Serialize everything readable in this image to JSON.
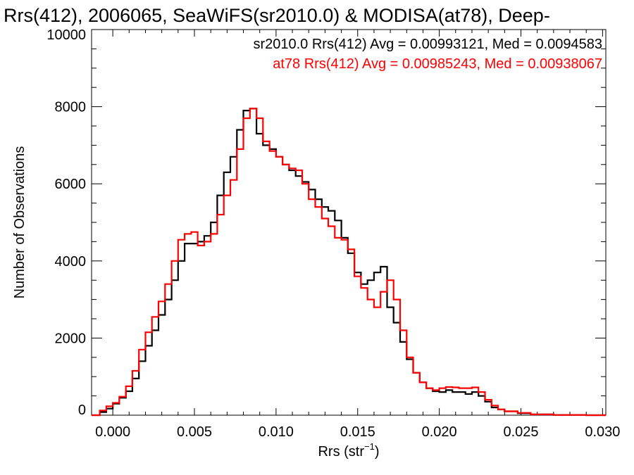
{
  "chart_data": {
    "type": "line",
    "title": "Rrs(412), 2006065, SeaWiFS(sr2010.0) & MODISA(at78), Deep-",
    "xlabel_main": "Rrs (str",
    "xlabel_sup": "−1",
    "xlabel_tail": ")",
    "ylabel": "Number of Observations",
    "xlim": [
      -0.0013,
      0.0302
    ],
    "ylim": [
      0,
      10000
    ],
    "x_ticks": [
      "0.000",
      "0.005",
      "0.010",
      "0.015",
      "0.020",
      "0.025",
      "0.030"
    ],
    "y_ticks": [
      "0",
      "2000",
      "4000",
      "6000",
      "8000",
      "10000"
    ],
    "grid": false,
    "annotations": [
      {
        "text": "sr2010.0 Rrs(412) Avg = 0.00993121, Med = 0.0094583",
        "color": "#000000"
      },
      {
        "text": "at78 Rrs(412) Avg = 0.00985243, Med = 0.00938067",
        "color": "#ff0000"
      }
    ],
    "series": [
      {
        "color": "#000000",
        "points": [
          [
            -0.0013,
            0
          ],
          [
            -0.0008,
            80
          ],
          [
            -0.0004,
            170
          ],
          [
            0.0,
            300
          ],
          [
            0.0004,
            450
          ],
          [
            0.0008,
            620
          ],
          [
            0.0012,
            950
          ],
          [
            0.0016,
            1400
          ],
          [
            0.002,
            1800
          ],
          [
            0.0024,
            2200
          ],
          [
            0.0028,
            2600
          ],
          [
            0.0032,
            3000
          ],
          [
            0.0036,
            3500
          ],
          [
            0.004,
            4000
          ],
          [
            0.0044,
            4450
          ],
          [
            0.0048,
            4450
          ],
          [
            0.0052,
            4500
          ],
          [
            0.0056,
            4650
          ],
          [
            0.006,
            5000
          ],
          [
            0.0064,
            5700
          ],
          [
            0.0068,
            6300
          ],
          [
            0.0072,
            6700
          ],
          [
            0.0076,
            7400
          ],
          [
            0.008,
            7900
          ],
          [
            0.0084,
            7950
          ],
          [
            0.0088,
            7300
          ],
          [
            0.0092,
            7000
          ],
          [
            0.0096,
            6900
          ],
          [
            0.01,
            6700
          ],
          [
            0.0104,
            6500
          ],
          [
            0.0108,
            6350
          ],
          [
            0.0112,
            6200
          ],
          [
            0.0116,
            6050
          ],
          [
            0.012,
            5850
          ],
          [
            0.0124,
            5600
          ],
          [
            0.0128,
            5400
          ],
          [
            0.0132,
            5300
          ],
          [
            0.0136,
            5050
          ],
          [
            0.014,
            4600
          ],
          [
            0.0144,
            4200
          ],
          [
            0.0148,
            3700
          ],
          [
            0.0152,
            3400
          ],
          [
            0.0156,
            3500
          ],
          [
            0.016,
            3700
          ],
          [
            0.0164,
            3850
          ],
          [
            0.0168,
            2800
          ],
          [
            0.0172,
            2400
          ],
          [
            0.0176,
            1900
          ],
          [
            0.018,
            1450
          ],
          [
            0.0184,
            1100
          ],
          [
            0.0188,
            850
          ],
          [
            0.0192,
            700
          ],
          [
            0.0196,
            620
          ],
          [
            0.02,
            600
          ],
          [
            0.0204,
            650
          ],
          [
            0.0208,
            600
          ],
          [
            0.0212,
            600
          ],
          [
            0.0216,
            550
          ],
          [
            0.022,
            600
          ],
          [
            0.0224,
            500
          ],
          [
            0.0228,
            350
          ],
          [
            0.0232,
            200
          ],
          [
            0.0236,
            150
          ],
          [
            0.024,
            100
          ],
          [
            0.0248,
            50
          ],
          [
            0.0256,
            20
          ],
          [
            0.027,
            5
          ],
          [
            0.029,
            0
          ],
          [
            0.0302,
            0
          ]
        ]
      },
      {
        "color": "#ff0000",
        "points": [
          [
            -0.0013,
            0
          ],
          [
            -0.0008,
            120
          ],
          [
            -0.0004,
            230
          ],
          [
            0.0,
            320
          ],
          [
            0.0004,
            480
          ],
          [
            0.0008,
            750
          ],
          [
            0.0012,
            1150
          ],
          [
            0.0016,
            1700
          ],
          [
            0.002,
            2150
          ],
          [
            0.0024,
            2550
          ],
          [
            0.0028,
            2950
          ],
          [
            0.0032,
            3400
          ],
          [
            0.0036,
            4000
          ],
          [
            0.004,
            4550
          ],
          [
            0.0044,
            4700
          ],
          [
            0.0048,
            4750
          ],
          [
            0.0052,
            4400
          ],
          [
            0.0056,
            4500
          ],
          [
            0.006,
            4700
          ],
          [
            0.0064,
            5200
          ],
          [
            0.0068,
            5700
          ],
          [
            0.0072,
            6100
          ],
          [
            0.0076,
            6900
          ],
          [
            0.008,
            7700
          ],
          [
            0.0084,
            7950
          ],
          [
            0.0088,
            7700
          ],
          [
            0.0092,
            7100
          ],
          [
            0.0096,
            6850
          ],
          [
            0.01,
            6700
          ],
          [
            0.0104,
            6500
          ],
          [
            0.0108,
            6400
          ],
          [
            0.0112,
            6350
          ],
          [
            0.0116,
            6000
          ],
          [
            0.012,
            5600
          ],
          [
            0.0124,
            5400
          ],
          [
            0.0128,
            5100
          ],
          [
            0.0132,
            4900
          ],
          [
            0.0136,
            4600
          ],
          [
            0.014,
            4550
          ],
          [
            0.0144,
            4300
          ],
          [
            0.0148,
            3600
          ],
          [
            0.0152,
            3300
          ],
          [
            0.0156,
            3000
          ],
          [
            0.016,
            2800
          ],
          [
            0.0164,
            3200
          ],
          [
            0.0168,
            3500
          ],
          [
            0.0172,
            3000
          ],
          [
            0.0176,
            2200
          ],
          [
            0.018,
            1500
          ],
          [
            0.0184,
            1100
          ],
          [
            0.0188,
            850
          ],
          [
            0.0192,
            700
          ],
          [
            0.0196,
            650
          ],
          [
            0.02,
            700
          ],
          [
            0.0204,
            730
          ],
          [
            0.0208,
            720
          ],
          [
            0.0212,
            700
          ],
          [
            0.0216,
            700
          ],
          [
            0.022,
            720
          ],
          [
            0.0224,
            600
          ],
          [
            0.0228,
            400
          ],
          [
            0.0232,
            250
          ],
          [
            0.0236,
            150
          ],
          [
            0.024,
            100
          ],
          [
            0.0248,
            60
          ],
          [
            0.0256,
            20
          ],
          [
            0.027,
            5
          ],
          [
            0.029,
            0
          ],
          [
            0.0302,
            0
          ]
        ]
      }
    ]
  }
}
